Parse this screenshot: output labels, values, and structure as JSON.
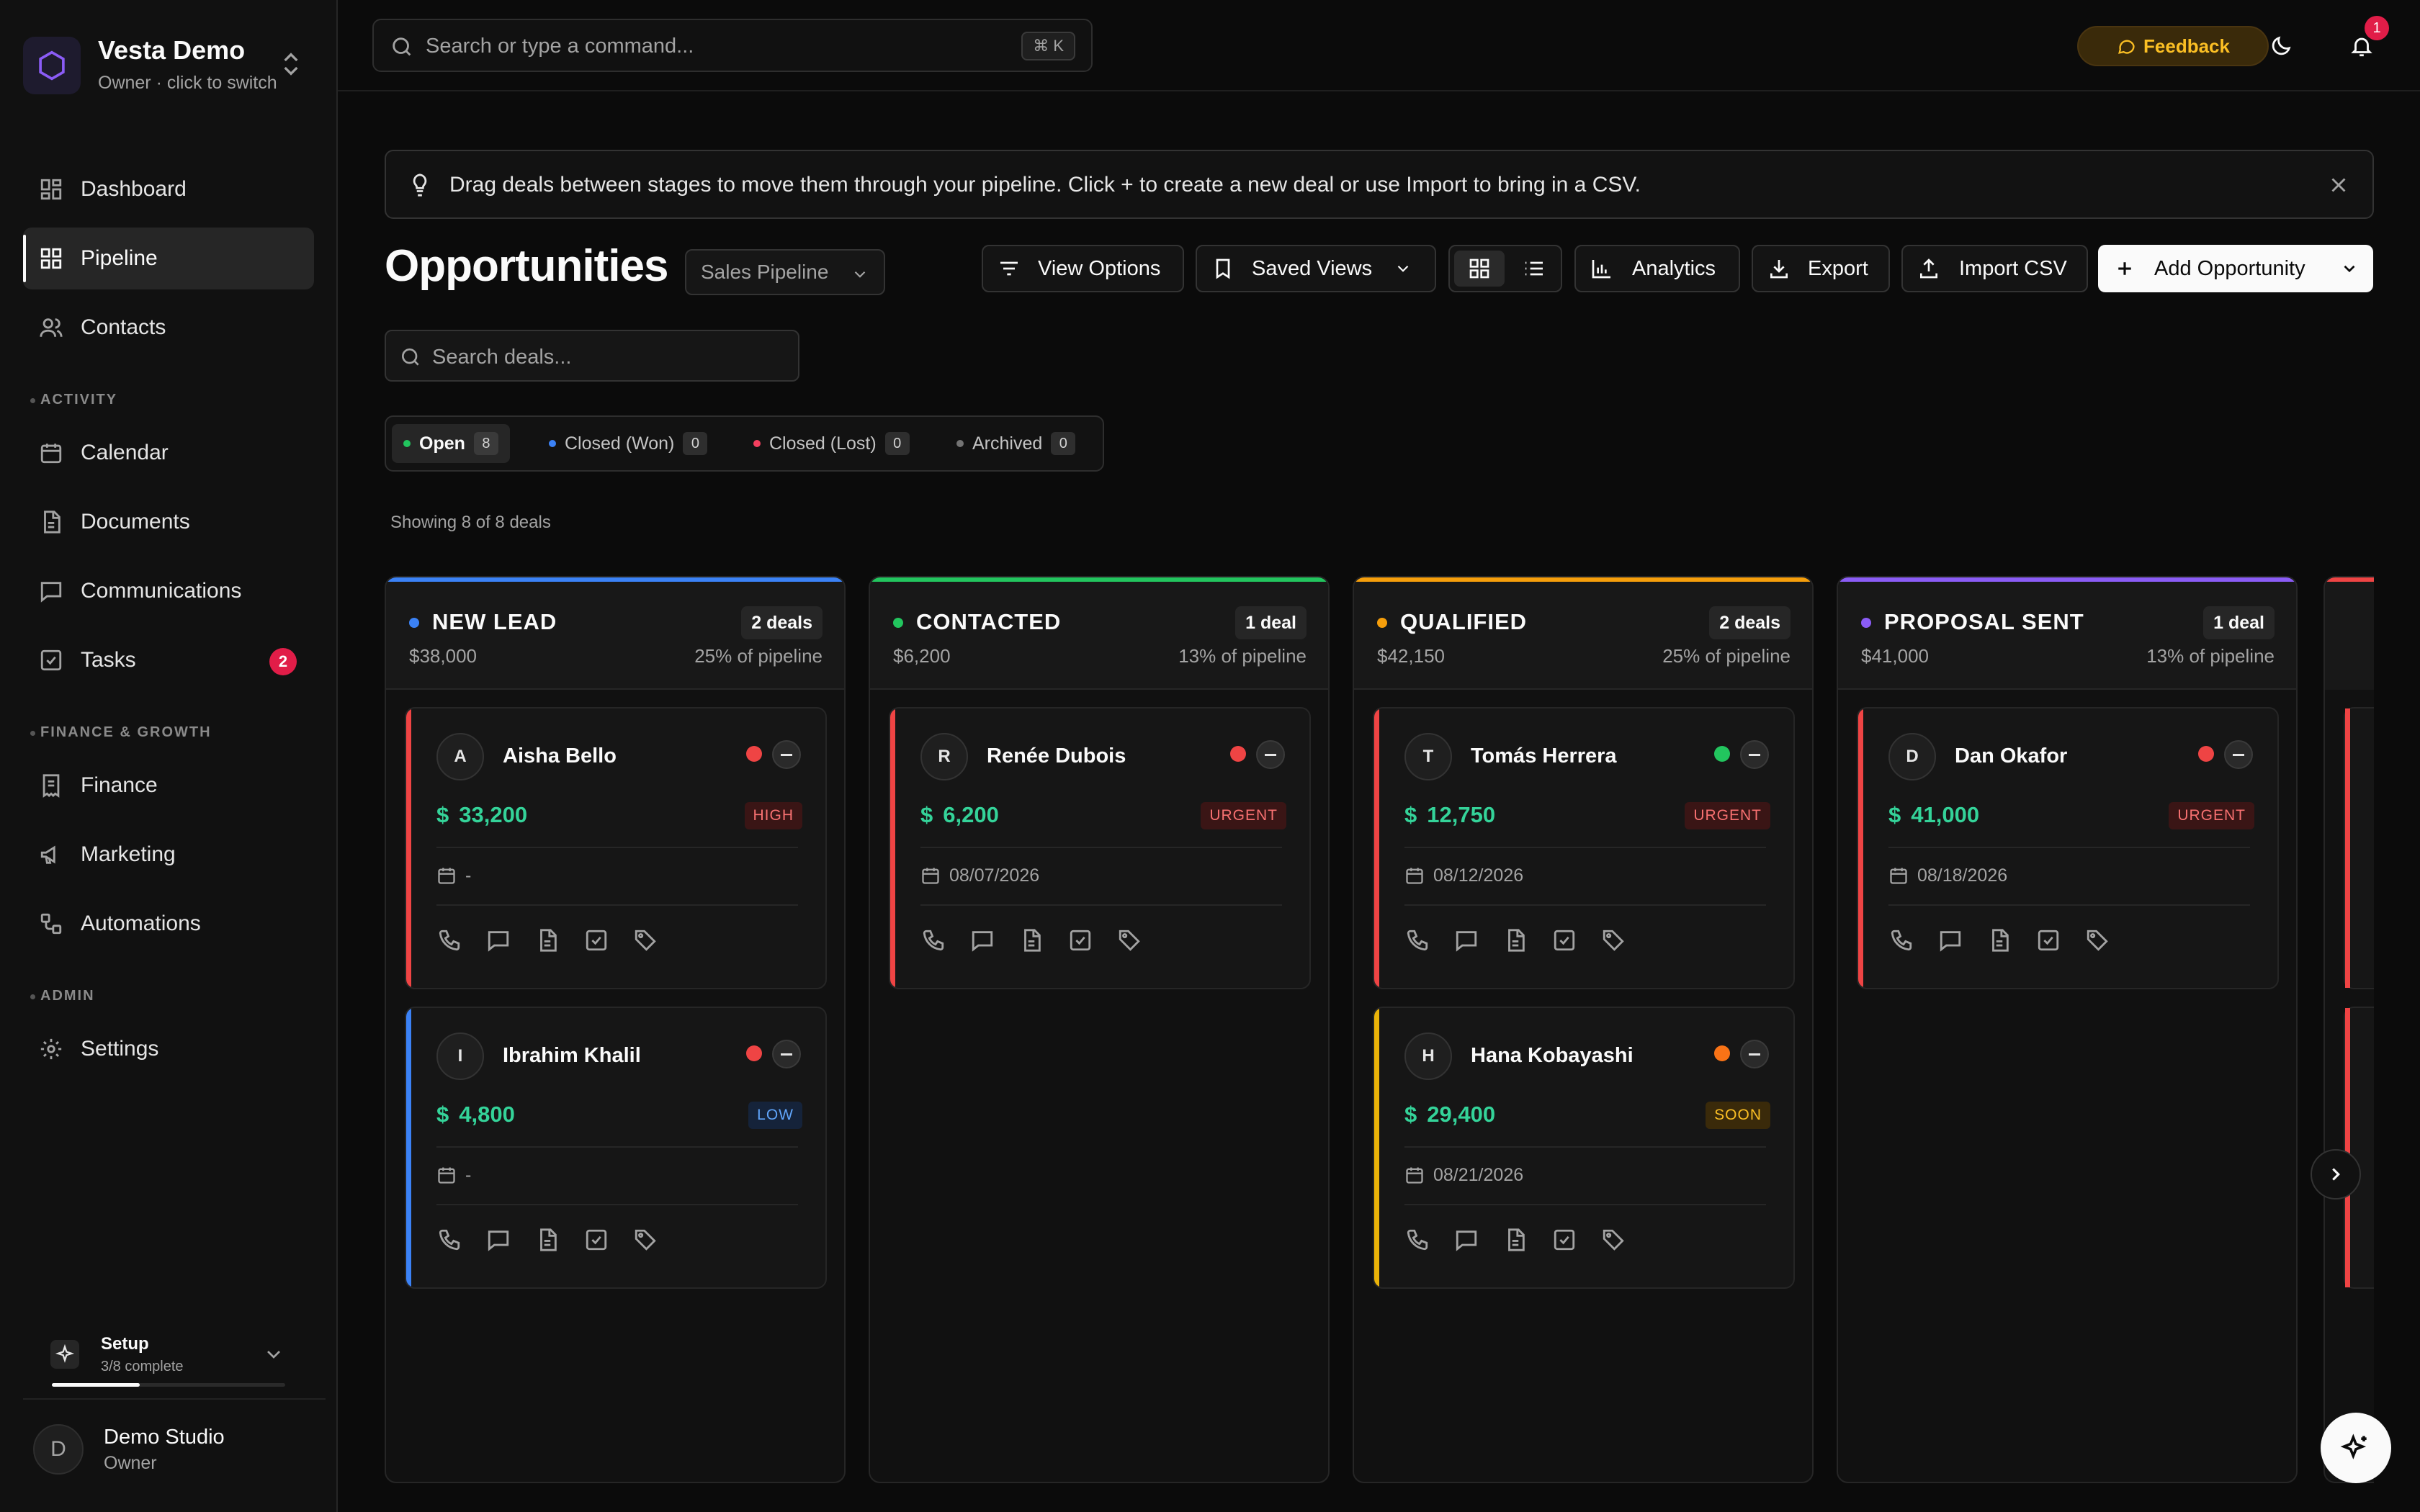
{
  "workspace": {
    "name": "Vesta Demo",
    "subtitle": "Owner · click to switch"
  },
  "nav": {
    "dashboard": "Dashboard",
    "pipeline": "Pipeline",
    "contacts": "Contacts",
    "section_activity": "ACTIVITY",
    "calendar": "Calendar",
    "documents": "Documents",
    "communications": "Communications",
    "tasks": "Tasks",
    "tasks_badge": "2",
    "section_finance": "FINANCE & GROWTH",
    "finance": "Finance",
    "marketing": "Marketing",
    "automations": "Automations",
    "section_admin": "ADMIN",
    "settings": "Settings"
  },
  "setup": {
    "title": "Setup",
    "progress": "3/8 complete",
    "fraction": 0.375
  },
  "user": {
    "avatar": "D",
    "name": "Demo Studio",
    "role": "Owner"
  },
  "topbar": {
    "search_placeholder": "Search or type a command...",
    "shortcut": "⌘ K",
    "feedback": "Feedback",
    "notifications": "1"
  },
  "banner": {
    "text": "Drag deals between stages to move them through your pipeline. Click + to create a new deal or use Import to bring in a CSV."
  },
  "page": {
    "title": "Opportunities",
    "pipeline_select": "Sales Pipeline"
  },
  "toolbar": {
    "view_options": "View Options",
    "saved_views": "Saved Views",
    "analytics": "Analytics",
    "export": "Export",
    "import_csv": "Import CSV",
    "add_opportunity": "Add Opportunity"
  },
  "search": {
    "placeholder": "Search deals..."
  },
  "status_tabs": [
    {
      "label": "Open",
      "count": "8",
      "color": "#22c55e"
    },
    {
      "label": "Closed (Won)",
      "count": "0",
      "color": "#3b82f6"
    },
    {
      "label": "Closed (Lost)",
      "count": "0",
      "color": "#f43f5e"
    },
    {
      "label": "Archived",
      "count": "0",
      "color": "#737373"
    }
  ],
  "showing": "Showing 8 of 8 deals",
  "columns": [
    {
      "name": "NEW LEAD",
      "color": "#3b82f6",
      "badge": "2 deals",
      "amount": "$38,000",
      "pct": "25% of pipeline",
      "cards": [
        {
          "initial": "A",
          "name": "Aisha Bello",
          "currency": "$",
          "amount": "33,200",
          "priority": "HIGH",
          "date": "-",
          "bar": "#ef4444",
          "dot": "#ef4444"
        },
        {
          "initial": "I",
          "name": "Ibrahim Khalil",
          "currency": "$",
          "amount": "4,800",
          "priority": "LOW",
          "date": "-",
          "bar": "#3b82f6",
          "dot": "#ef4444"
        }
      ]
    },
    {
      "name": "CONTACTED",
      "color": "#22c55e",
      "badge": "1 deal",
      "amount": "$6,200",
      "pct": "13% of pipeline",
      "cards": [
        {
          "initial": "R",
          "name": "Renée Dubois",
          "currency": "$",
          "amount": "6,200",
          "priority": "URGENT",
          "date": "08/07/2026",
          "bar": "#ef4444",
          "dot": "#ef4444"
        }
      ]
    },
    {
      "name": "QUALIFIED",
      "color": "#f59e0b",
      "badge": "2 deals",
      "amount": "$42,150",
      "pct": "25% of pipeline",
      "cards": [
        {
          "initial": "T",
          "name": "Tomás Herrera",
          "currency": "$",
          "amount": "12,750",
          "priority": "URGENT",
          "date": "08/12/2026",
          "bar": "#ef4444",
          "dot": "#22c55e"
        },
        {
          "initial": "H",
          "name": "Hana Kobayashi",
          "currency": "$",
          "amount": "29,400",
          "priority": "SOON",
          "date": "08/21/2026",
          "bar": "#eab308",
          "dot": "#f97316"
        }
      ]
    },
    {
      "name": "PROPOSAL SENT",
      "color": "#8b5cf6",
      "badge": "1 deal",
      "amount": "$41,000",
      "pct": "13% of pipeline",
      "cards": [
        {
          "initial": "D",
          "name": "Dan Okafor",
          "currency": "$",
          "amount": "41,000",
          "priority": "URGENT",
          "date": "08/18/2026",
          "bar": "#ef4444",
          "dot": "#ef4444"
        }
      ]
    }
  ],
  "priority_styles": {
    "HIGH": {
      "fg": "#f87171",
      "bg": "#3a1515"
    },
    "URGENT": {
      "fg": "#f87171",
      "bg": "#3a1515"
    },
    "LOW": {
      "fg": "#60a5fa",
      "bg": "#15233a"
    },
    "SOON": {
      "fg": "#fbbf24",
      "bg": "#3a2a0a"
    }
  }
}
